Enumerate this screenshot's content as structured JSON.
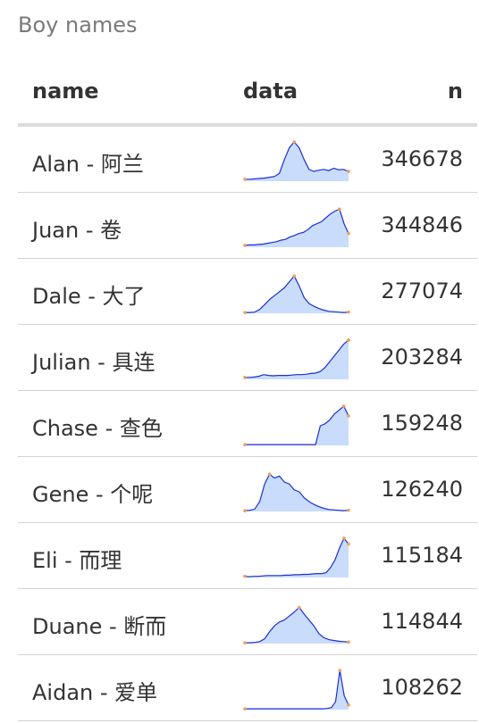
{
  "caption": "Boy names",
  "columns": {
    "name": "name",
    "data": "data",
    "n": "n"
  },
  "colors": {
    "line": "#1a2fd6",
    "fill": "#c9dcfb",
    "marker": "#f39c50"
  },
  "rows": [
    {
      "name": "Alan - 阿兰",
      "n": "346678",
      "spark": [
        0.05,
        0.05,
        0.06,
        0.07,
        0.08,
        0.1,
        0.12,
        0.2,
        0.55,
        0.85,
        1.0,
        0.85,
        0.55,
        0.3,
        0.25,
        0.28,
        0.3,
        0.27,
        0.33,
        0.29,
        0.3,
        0.25
      ]
    },
    {
      "name": "Juan - 卷",
      "n": "344846",
      "spark": [
        0.05,
        0.06,
        0.06,
        0.07,
        0.08,
        0.1,
        0.12,
        0.14,
        0.18,
        0.2,
        0.26,
        0.3,
        0.35,
        0.38,
        0.45,
        0.55,
        0.6,
        0.65,
        0.75,
        0.85,
        0.92,
        0.97,
        0.6,
        0.35
      ]
    },
    {
      "name": "Dale - 大了",
      "n": "277074",
      "spark": [
        0.02,
        0.02,
        0.03,
        0.1,
        0.22,
        0.35,
        0.45,
        0.55,
        0.65,
        0.8,
        0.95,
        0.7,
        0.4,
        0.25,
        0.18,
        0.12,
        0.08,
        0.05,
        0.04,
        0.03,
        0.02,
        0.03
      ]
    },
    {
      "name": "Julian - 具连",
      "n": "203284",
      "spark": [
        0.05,
        0.05,
        0.06,
        0.08,
        0.12,
        0.1,
        0.09,
        0.1,
        0.1,
        0.1,
        0.11,
        0.12,
        0.12,
        0.13,
        0.15,
        0.16,
        0.2,
        0.3,
        0.45,
        0.6,
        0.75,
        0.9,
        1.0
      ]
    },
    {
      "name": "Chase - 查色",
      "n": "159248",
      "spark": [
        0.02,
        0.02,
        0.02,
        0.02,
        0.02,
        0.02,
        0.02,
        0.02,
        0.02,
        0.02,
        0.02,
        0.02,
        0.02,
        0.02,
        0.02,
        0.02,
        0.5,
        0.55,
        0.65,
        0.8,
        0.9,
        1.0,
        0.75
      ]
    },
    {
      "name": "Gene - 个呢",
      "n": "126240",
      "spark": [
        0.02,
        0.03,
        0.06,
        0.25,
        0.7,
        0.95,
        0.85,
        0.9,
        0.75,
        0.7,
        0.55,
        0.5,
        0.35,
        0.25,
        0.18,
        0.12,
        0.08,
        0.05,
        0.04,
        0.03,
        0.02,
        0.03
      ]
    },
    {
      "name": "Eli - 而理",
      "n": "115184",
      "spark": [
        0.03,
        0.02,
        0.03,
        0.03,
        0.04,
        0.05,
        0.05,
        0.05,
        0.05,
        0.06,
        0.06,
        0.07,
        0.07,
        0.08,
        0.08,
        0.09,
        0.1,
        0.1,
        0.12,
        0.25,
        0.45,
        0.75,
        1.0,
        0.85
      ]
    },
    {
      "name": "Duane - 断而",
      "n": "114844",
      "spark": [
        0.02,
        0.02,
        0.03,
        0.05,
        0.12,
        0.3,
        0.45,
        0.55,
        0.6,
        0.7,
        0.8,
        0.92,
        0.75,
        0.6,
        0.45,
        0.25,
        0.15,
        0.1,
        0.08,
        0.06,
        0.05,
        0.04
      ]
    },
    {
      "name": "Aidan - 爱单",
      "n": "108262",
      "spark": [
        0.02,
        0.02,
        0.02,
        0.02,
        0.02,
        0.02,
        0.02,
        0.02,
        0.02,
        0.02,
        0.02,
        0.02,
        0.02,
        0.02,
        0.02,
        0.02,
        0.02,
        0.02,
        0.02,
        0.03,
        0.05,
        0.2,
        1.0,
        0.35,
        0.12
      ]
    }
  ],
  "chart_data": {
    "type": "table",
    "columns": [
      "name",
      "data",
      "n"
    ],
    "rows": [
      {
        "name": "Alan - 阿兰",
        "n": 346678
      },
      {
        "name": "Juan - 卷",
        "n": 344846
      },
      {
        "name": "Dale - 大了",
        "n": 277074
      },
      {
        "name": "Julian - 具连",
        "n": 203284
      },
      {
        "name": "Chase - 查色",
        "n": 159248
      },
      {
        "name": "Gene - 个呢",
        "n": 126240
      },
      {
        "name": "Eli - 而理",
        "n": 115184
      },
      {
        "name": "Duane - 断而",
        "n": 114844
      },
      {
        "name": "Aidan - 爱单",
        "n": 108262
      }
    ]
  }
}
